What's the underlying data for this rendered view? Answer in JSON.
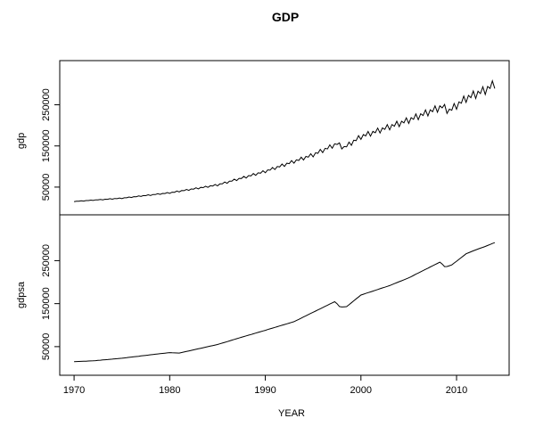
{
  "chart_data": {
    "type": "line",
    "title": "GDP",
    "xlabel": "YEAR",
    "x_ticks": [
      "1970",
      "1980",
      "1990",
      "2000",
      "2010"
    ],
    "x_tick_values": [
      1970,
      1980,
      1990,
      2000,
      2010
    ],
    "xlim": [
      1968.5,
      2015.5
    ],
    "panels": [
      {
        "name": "gdp",
        "ylabel": "gdp",
        "y_ticks": [
          "50000",
          "150000",
          "250000"
        ],
        "y_tick_values": [
          50000,
          150000,
          250000
        ],
        "ylim": [
          0,
          340000
        ],
        "seasonal": true,
        "series": [
          {
            "name": "gdp",
            "points": [
              [
                1970,
                15000
              ],
              [
                1975,
                23000
              ],
              [
                1980,
                36000
              ],
              [
                1985,
                55000
              ],
              [
                1990,
                88000
              ],
              [
                1995,
                128000
              ],
              [
                1997.5,
                155000
              ],
              [
                1998.2,
                145000
              ],
              [
                2000,
                172000
              ],
              [
                2005,
                212000
              ],
              [
                2008.5,
                245000
              ],
              [
                2009.2,
                234000
              ],
              [
                2011,
                265000
              ],
              [
                2013,
                285000
              ],
              [
                2014,
                300000
              ]
            ]
          }
        ]
      },
      {
        "name": "gdpsa",
        "ylabel": "gdpsa",
        "y_ticks": [
          "50000",
          "150000",
          "250000"
        ],
        "y_tick_values": [
          50000,
          150000,
          250000
        ],
        "ylim": [
          0,
          340000
        ],
        "seasonal": false,
        "series": [
          {
            "name": "gdpsa",
            "points": [
              [
                1970,
                15000
              ],
              [
                1972,
                17000
              ],
              [
                1975,
                23000
              ],
              [
                1978,
                31000
              ],
              [
                1980,
                36000
              ],
              [
                1981,
                35000
              ],
              [
                1985,
                55000
              ],
              [
                1988,
                75000
              ],
              [
                1990,
                88000
              ],
              [
                1993,
                108000
              ],
              [
                1995,
                130000
              ],
              [
                1997.3,
                155000
              ],
              [
                1997.8,
                142000
              ],
              [
                1998.5,
                143000
              ],
              [
                2000,
                170000
              ],
              [
                2003,
                192000
              ],
              [
                2005,
                210000
              ],
              [
                2008.3,
                247000
              ],
              [
                2008.8,
                235000
              ],
              [
                2009.5,
                240000
              ],
              [
                2011,
                266000
              ],
              [
                2012,
                275000
              ],
              [
                2013,
                283000
              ],
              [
                2014,
                292000
              ]
            ]
          }
        ]
      }
    ],
    "grid": false,
    "legend": "none"
  }
}
